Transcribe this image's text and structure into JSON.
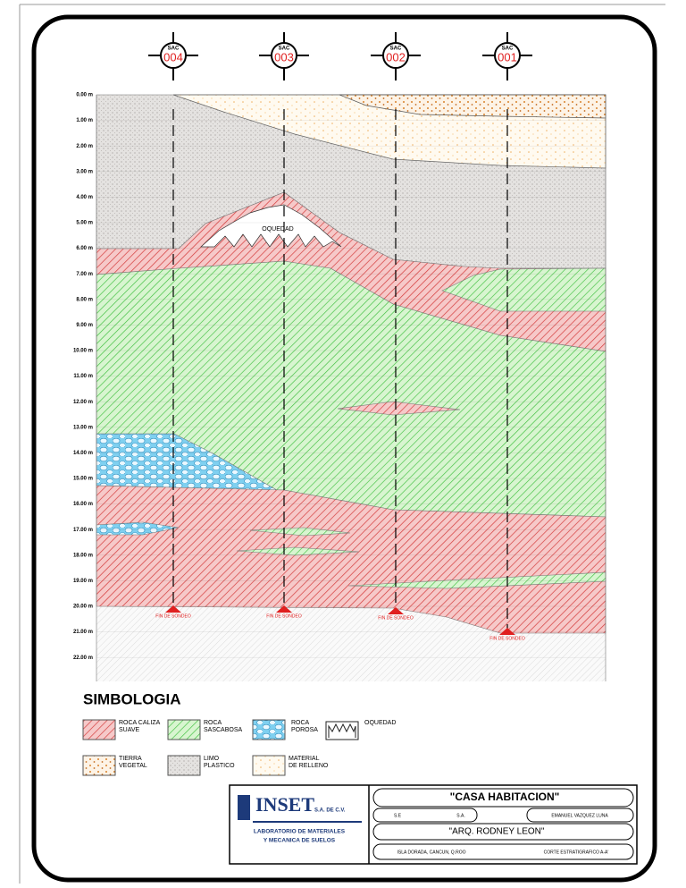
{
  "boreholes": [
    {
      "code": "SAC",
      "number": "004",
      "end_label": "FIN DE SONDEO"
    },
    {
      "code": "SAC",
      "number": "003",
      "end_label": "FIN DE SONDEO"
    },
    {
      "code": "SAC",
      "number": "002",
      "end_label": "FIN DE SONDEO"
    },
    {
      "code": "SAC",
      "number": "001",
      "end_label": "FIN DE SONDEO"
    }
  ],
  "depth_labels": [
    "0.00 m",
    "1.00 m",
    "2.00 m",
    "3.00 m",
    "4.00 m",
    "5.00 m",
    "6.00 m",
    "7.00 m",
    "8.00 m",
    "9.00 m",
    "10.00 m",
    "11.00 m",
    "12.00 m",
    "13.00 m",
    "14.00 m",
    "15.00 m",
    "16.00 m",
    "17.00 m",
    "18.00 m",
    "19.00 m",
    "20.00 m",
    "21.00 m",
    "22.00 m"
  ],
  "cavity_label": "OQUEDAD",
  "legend": {
    "title": "SIMBOLOGIA",
    "items": [
      {
        "lines": [
          "ROCA CALIZA",
          "SUAVE"
        ]
      },
      {
        "lines": [
          "ROCA",
          "SASCABOSA"
        ]
      },
      {
        "lines": [
          "ROCA",
          "POROSA"
        ]
      },
      {
        "lines": [
          "OQUEDAD"
        ]
      },
      {
        "lines": [
          "TIERRA",
          "VEGETAL"
        ]
      },
      {
        "lines": [
          "LIMO",
          "PLASTICO"
        ]
      },
      {
        "lines": [
          "MATERIAL",
          "DE RELLENO"
        ]
      }
    ]
  },
  "title_block": {
    "company": "INSET",
    "company_suffix": "S.A. DE C.V.",
    "lab_line1": "LABORATORIO DE MATERIALES",
    "lab_line2": "Y MECANICA DE SUELOS",
    "project": "\"CASA HABITACION\"",
    "scale": "S.E",
    "units": "S.A.",
    "drawn_by": "EMANUEL VAZQUEZ LUNA",
    "client": "\"ARQ. RODNEY LEON\"",
    "location": "ISLA DORADA, CANCUN, Q.ROO",
    "drawing": "CORTE ESTRATIGRAFICO A-A'"
  }
}
